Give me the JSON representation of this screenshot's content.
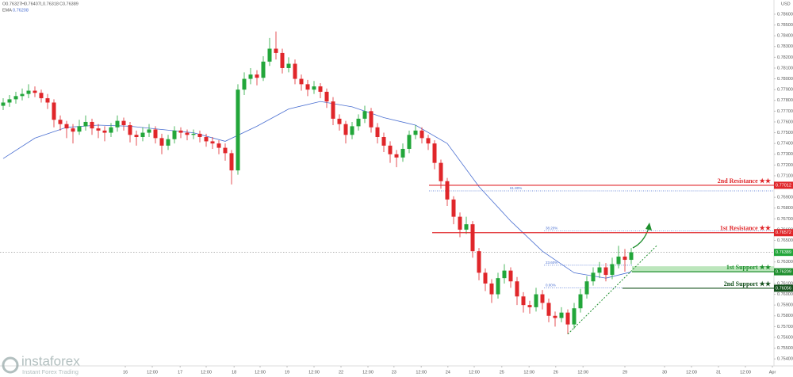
{
  "chart_data": {
    "type": "candlestick",
    "header": [
      "O0.76327",
      "H0.76407",
      "L0.76318",
      "C0.76389"
    ],
    "currency": "USD",
    "up_color": "#22a63a",
    "down_color": "#e0262a",
    "ohlc": [
      [
        0.7775,
        0.7782,
        0.7771,
        0.7778
      ],
      [
        0.7778,
        0.7785,
        0.7774,
        0.7781
      ],
      [
        0.7781,
        0.7788,
        0.7777,
        0.7784
      ],
      [
        0.7784,
        0.7791,
        0.778,
        0.7786
      ],
      [
        0.7786,
        0.7795,
        0.7782,
        0.7789
      ],
      [
        0.7789,
        0.7793,
        0.7783,
        0.7787
      ],
      [
        0.7787,
        0.779,
        0.7778,
        0.7782
      ],
      [
        0.7782,
        0.7786,
        0.7772,
        0.7778
      ],
      [
        0.7778,
        0.7781,
        0.7755,
        0.7762
      ],
      [
        0.7762,
        0.7766,
        0.7752,
        0.7758
      ],
      [
        0.7758,
        0.7761,
        0.7745,
        0.7754
      ],
      [
        0.7754,
        0.7758,
        0.774,
        0.7751
      ],
      [
        0.7751,
        0.7762,
        0.7748,
        0.7756
      ],
      [
        0.7756,
        0.7766,
        0.7752,
        0.776
      ],
      [
        0.776,
        0.7763,
        0.7748,
        0.7754
      ],
      [
        0.7754,
        0.7758,
        0.7745,
        0.7752
      ],
      [
        0.7752,
        0.7756,
        0.7742,
        0.775
      ],
      [
        0.775,
        0.7759,
        0.7746,
        0.7755
      ],
      [
        0.7755,
        0.7766,
        0.7751,
        0.7761
      ],
      [
        0.7761,
        0.7764,
        0.7752,
        0.7757
      ],
      [
        0.7757,
        0.776,
        0.7741,
        0.7748
      ],
      [
        0.7748,
        0.7752,
        0.7738,
        0.7746
      ],
      [
        0.7746,
        0.7755,
        0.7742,
        0.775
      ],
      [
        0.775,
        0.7758,
        0.7746,
        0.7753
      ],
      [
        0.7753,
        0.7756,
        0.774,
        0.7745
      ],
      [
        0.7745,
        0.7749,
        0.773,
        0.7738
      ],
      [
        0.7738,
        0.7748,
        0.7734,
        0.7744
      ],
      [
        0.7744,
        0.7756,
        0.774,
        0.7752
      ],
      [
        0.7752,
        0.7755,
        0.7745,
        0.775
      ],
      [
        0.775,
        0.7753,
        0.7743,
        0.7748
      ],
      [
        0.7748,
        0.7753,
        0.7744,
        0.7749
      ],
      [
        0.7749,
        0.7752,
        0.7741,
        0.7746
      ],
      [
        0.7746,
        0.7749,
        0.7737,
        0.7742
      ],
      [
        0.7742,
        0.7746,
        0.7735,
        0.774
      ],
      [
        0.774,
        0.7743,
        0.773,
        0.7736
      ],
      [
        0.7736,
        0.774,
        0.7724,
        0.7731
      ],
      [
        0.7731,
        0.7734,
        0.7702,
        0.7715
      ],
      [
        0.7715,
        0.7795,
        0.7711,
        0.779
      ],
      [
        0.779,
        0.7806,
        0.7785,
        0.78
      ],
      [
        0.78,
        0.781,
        0.7795,
        0.7804
      ],
      [
        0.7804,
        0.7808,
        0.7794,
        0.7801
      ],
      [
        0.7801,
        0.7821,
        0.7798,
        0.7816
      ],
      [
        0.7816,
        0.7838,
        0.7812,
        0.7828
      ],
      [
        0.7828,
        0.7844,
        0.7818,
        0.7824
      ],
      [
        0.7824,
        0.7828,
        0.7805,
        0.781
      ],
      [
        0.781,
        0.782,
        0.7806,
        0.7814
      ],
      [
        0.7814,
        0.7818,
        0.7795,
        0.78
      ],
      [
        0.78,
        0.7804,
        0.7789,
        0.7795
      ],
      [
        0.7795,
        0.7799,
        0.7784,
        0.779
      ],
      [
        0.779,
        0.7798,
        0.7786,
        0.7793
      ],
      [
        0.7793,
        0.7796,
        0.7782,
        0.7788
      ],
      [
        0.7788,
        0.7791,
        0.7773,
        0.7779
      ],
      [
        0.7779,
        0.7783,
        0.7757,
        0.7763
      ],
      [
        0.7763,
        0.7767,
        0.7752,
        0.7758
      ],
      [
        0.7758,
        0.7761,
        0.774,
        0.7748
      ],
      [
        0.7748,
        0.776,
        0.7744,
        0.7756
      ],
      [
        0.7756,
        0.7767,
        0.7752,
        0.7763
      ],
      [
        0.7763,
        0.7775,
        0.7759,
        0.777
      ],
      [
        0.777,
        0.7773,
        0.775,
        0.7755
      ],
      [
        0.7755,
        0.7759,
        0.774,
        0.7746
      ],
      [
        0.7746,
        0.775,
        0.7732,
        0.7738
      ],
      [
        0.7738,
        0.7742,
        0.7722,
        0.773
      ],
      [
        0.773,
        0.7734,
        0.7718,
        0.7727
      ],
      [
        0.7727,
        0.774,
        0.7723,
        0.7735
      ],
      [
        0.7735,
        0.7752,
        0.7731,
        0.7748
      ],
      [
        0.7748,
        0.7757,
        0.7744,
        0.7752
      ],
      [
        0.7752,
        0.7755,
        0.774,
        0.7745
      ],
      [
        0.7745,
        0.7748,
        0.7734,
        0.774
      ],
      [
        0.774,
        0.7743,
        0.7716,
        0.7722
      ],
      [
        0.7722,
        0.7725,
        0.7698,
        0.7705
      ],
      [
        0.7705,
        0.7708,
        0.7682,
        0.7688
      ],
      [
        0.7688,
        0.7691,
        0.7665,
        0.7672
      ],
      [
        0.7672,
        0.7676,
        0.7653,
        0.766
      ],
      [
        0.766,
        0.7672,
        0.7656,
        0.7665
      ],
      [
        0.7665,
        0.7668,
        0.7634,
        0.764
      ],
      [
        0.764,
        0.7643,
        0.7613,
        0.762
      ],
      [
        0.762,
        0.7624,
        0.7603,
        0.761
      ],
      [
        0.761,
        0.7614,
        0.7592,
        0.76
      ],
      [
        0.76,
        0.762,
        0.7596,
        0.7615
      ],
      [
        0.7615,
        0.7628,
        0.761,
        0.7622
      ],
      [
        0.7622,
        0.7625,
        0.7606,
        0.7612
      ],
      [
        0.7612,
        0.7616,
        0.759,
        0.7598
      ],
      [
        0.7598,
        0.7602,
        0.7583,
        0.759
      ],
      [
        0.759,
        0.7594,
        0.7582,
        0.7588
      ],
      [
        0.7588,
        0.7606,
        0.7584,
        0.76
      ],
      [
        0.76,
        0.7604,
        0.7586,
        0.7592
      ],
      [
        0.7592,
        0.7596,
        0.7574,
        0.758
      ],
      [
        0.758,
        0.7584,
        0.757,
        0.7578
      ],
      [
        0.7578,
        0.7588,
        0.7574,
        0.7583
      ],
      [
        0.7583,
        0.7586,
        0.7563,
        0.7572
      ],
      [
        0.7572,
        0.7592,
        0.7568,
        0.7587
      ],
      [
        0.7587,
        0.7605,
        0.7583,
        0.76
      ],
      [
        0.76,
        0.7617,
        0.7596,
        0.7612
      ],
      [
        0.7612,
        0.7625,
        0.7608,
        0.762
      ],
      [
        0.762,
        0.763,
        0.7615,
        0.7625
      ],
      [
        0.7625,
        0.7629,
        0.7612,
        0.7618
      ],
      [
        0.7618,
        0.7634,
        0.7614,
        0.7628
      ],
      [
        0.7628,
        0.7645,
        0.7624,
        0.7635
      ],
      [
        0.7635,
        0.7642,
        0.7621,
        0.7632
      ],
      [
        0.7632,
        0.7643,
        0.7628,
        0.7639
      ]
    ],
    "ema": {
      "name": "EMA",
      "color": "#4a6fd1",
      "x": [
        0,
        5,
        10,
        15,
        20,
        25,
        30,
        35,
        40,
        45,
        50,
        55,
        60,
        65,
        70,
        75,
        80,
        85,
        90,
        95,
        99
      ],
      "values": [
        0.7726,
        0.7745,
        0.7755,
        0.7757,
        0.7756,
        0.7753,
        0.775,
        0.7742,
        0.7756,
        0.7772,
        0.7779,
        0.7774,
        0.7764,
        0.7757,
        0.774,
        0.77,
        0.7668,
        0.764,
        0.762,
        0.7615,
        0.76208
      ]
    },
    "last_price": 0.76389,
    "last_color": "#22a63a",
    "levels": [
      {
        "name": "2nd Resistance ★★",
        "value": 0.77012,
        "color": "#e0262a"
      },
      {
        "name": "1st Resistance ★★",
        "value": 0.76572,
        "color": "#e0262a"
      },
      {
        "name": "1st Support ★★",
        "value": 0.76209,
        "color": "#1f8f2e"
      },
      {
        "name": "2nd Support ★★",
        "value": 0.76056,
        "color": "#14501c"
      }
    ],
    "support_zone": [
      0.76209,
      0.7626
    ],
    "fib": [
      {
        "label": "61.80%",
        "value": 0.7696
      },
      {
        "label": "38.20%",
        "value": 0.7659
      },
      {
        "label": "23.60%",
        "value": 0.7627
      },
      {
        "label": "0.00%",
        "value": 0.7606
      }
    ],
    "trendline": {
      "x": [
        89,
        103
      ],
      "values": [
        0.7563,
        0.7645
      ]
    },
    "xlim": [
      -0.5,
      121.5
    ],
    "xticks": [
      {
        "value": 19.25,
        "label": "16"
      },
      {
        "value": 23.5,
        "label": "12:00"
      },
      {
        "value": 27.9,
        "label": "17"
      },
      {
        "value": 32,
        "label": "12:00"
      },
      {
        "value": 36.4,
        "label": "18"
      },
      {
        "value": 40.5,
        "label": "12:00"
      },
      {
        "value": 44.75,
        "label": "19"
      },
      {
        "value": 49,
        "label": "12:00"
      },
      {
        "value": 53.25,
        "label": "22"
      },
      {
        "value": 57.5,
        "label": "12:00"
      },
      {
        "value": 61.6,
        "label": "23"
      },
      {
        "value": 65.9,
        "label": "12:00"
      },
      {
        "value": 70.1,
        "label": "24"
      },
      {
        "value": 74.25,
        "label": "12:00"
      },
      {
        "value": 78.6,
        "label": "25"
      },
      {
        "value": 82.9,
        "label": "12:00"
      },
      {
        "value": 87.1,
        "label": "26"
      },
      {
        "value": 91.4,
        "label": "12:00"
      },
      {
        "value": 98,
        "label": "29"
      },
      {
        "value": 104.25,
        "label": "30"
      },
      {
        "value": 108.5,
        "label": "12:00"
      },
      {
        "value": 112.75,
        "label": "31"
      },
      {
        "value": 117,
        "label": "12:00"
      },
      {
        "value": 121.25,
        "label": "Apr"
      }
    ],
    "ylim": [
      0.75335,
      0.78732
    ],
    "yticks": [
      {
        "value": 0.754,
        "label": "0.75400"
      },
      {
        "value": 0.755,
        "label": "0.75500"
      },
      {
        "value": 0.756,
        "label": "0.75600"
      },
      {
        "value": 0.757,
        "label": "0.75700"
      },
      {
        "value": 0.758,
        "label": "0.75800"
      },
      {
        "value": 0.759,
        "label": "0.75900"
      },
      {
        "value": 0.76,
        "label": "0.76000"
      },
      {
        "value": 0.761,
        "label": "0.76100"
      },
      {
        "value": 0.762,
        "label": "0.76200"
      },
      {
        "value": 0.763,
        "label": "0.76300"
      },
      {
        "value": 0.764,
        "label": "0.76400"
      },
      {
        "value": 0.765,
        "label": "0.76500"
      },
      {
        "value": 0.766,
        "label": "0.76600"
      },
      {
        "value": 0.767,
        "label": "0.76700"
      },
      {
        "value": 0.768,
        "label": "0.76800"
      },
      {
        "value": 0.769,
        "label": "0.76900"
      },
      {
        "value": 0.77,
        "label": "0.77000"
      },
      {
        "value": 0.771,
        "label": "0.77100"
      },
      {
        "value": 0.772,
        "label": "0.77200"
      },
      {
        "value": 0.773,
        "label": "0.77300"
      },
      {
        "value": 0.774,
        "label": "0.77400"
      },
      {
        "value": 0.775,
        "label": "0.77500"
      },
      {
        "value": 0.776,
        "label": "0.77600"
      },
      {
        "value": 0.777,
        "label": "0.77700"
      },
      {
        "value": 0.778,
        "label": "0.77800"
      },
      {
        "value": 0.779,
        "label": "0.77900"
      },
      {
        "value": 0.78,
        "label": "0.78000"
      },
      {
        "value": 0.781,
        "label": "0.78100"
      },
      {
        "value": 0.782,
        "label": "0.78200"
      },
      {
        "value": 0.783,
        "label": "0.78300"
      },
      {
        "value": 0.784,
        "label": "0.78400"
      },
      {
        "value": 0.785,
        "label": "0.78500"
      },
      {
        "value": 0.786,
        "label": "0.78600"
      }
    ],
    "grid": false,
    "watermark": {
      "brand": "instaforex",
      "tagline": "Instant Forex Trading"
    }
  }
}
